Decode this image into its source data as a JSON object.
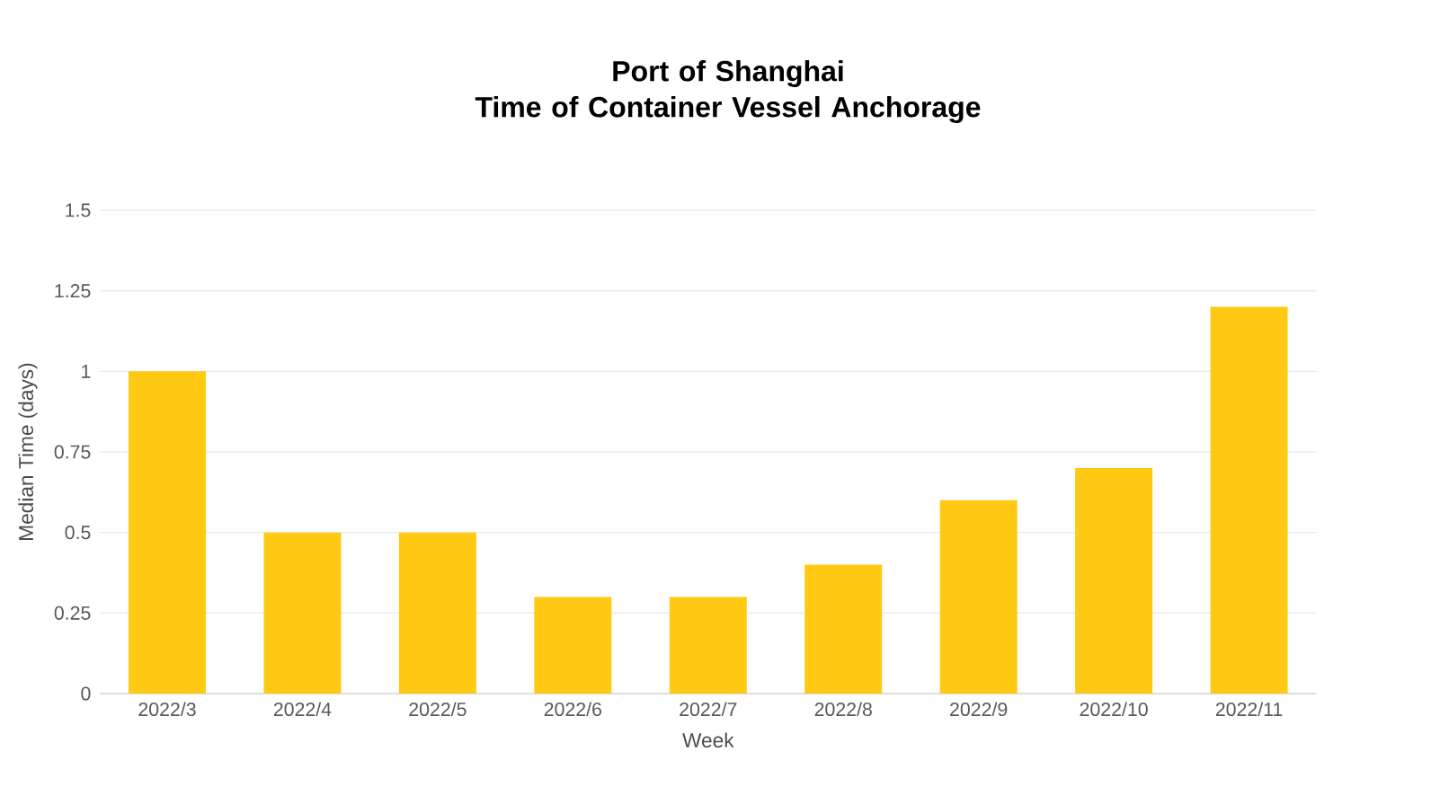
{
  "chart_data": {
    "type": "bar",
    "title": "Port of Shanghai\nTime of Container Vessel Anchorage",
    "xlabel": "Week",
    "ylabel": "Median Time (days)",
    "categories": [
      "2022/3",
      "2022/4",
      "2022/5",
      "2022/6",
      "2022/7",
      "2022/8",
      "2022/9",
      "2022/10",
      "2022/11"
    ],
    "values": [
      1,
      0.5,
      0.5,
      0.3,
      0.3,
      0.4,
      0.6,
      0.7,
      1.2
    ],
    "color": "#ffc914",
    "ylim": [
      0,
      1.5
    ],
    "yticks": [
      0,
      0.25,
      0.5,
      0.75,
      1,
      1.25,
      1.5
    ],
    "grid": "y"
  }
}
